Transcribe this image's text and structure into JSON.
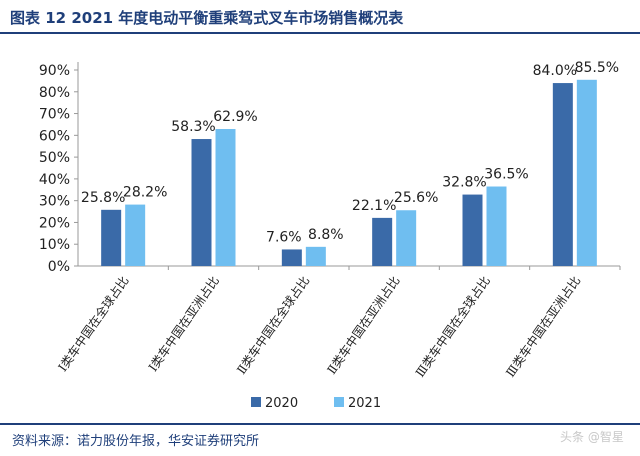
{
  "title": "图表 12 2021 年度电动平衡重乘驾式叉车市场销售概况表",
  "source": "资料来源：诺力股份年报，华安证券研究所",
  "watermark": "头条 @智星",
  "colors": {
    "series_2020": "#3a6aa8",
    "series_2021": "#6fbef0",
    "brand": "#1f3f7a"
  },
  "chart_data": {
    "type": "bar",
    "categories": [
      "Ⅰ类车中国在全球占比",
      "Ⅰ类车中国在亚洲占比",
      "Ⅱ类车中国在全球占比",
      "Ⅱ类车中国在亚洲占比",
      "Ⅲ类车中国在全球占比",
      "Ⅲ类车中国在亚洲占比"
    ],
    "series": [
      {
        "name": "2020",
        "values": [
          25.8,
          58.3,
          7.6,
          22.1,
          32.8,
          84.0
        ],
        "labels": [
          "25.8%",
          "58.3%",
          "7.6%",
          "22.1%",
          "32.8%",
          "84.0%"
        ]
      },
      {
        "name": "2021",
        "values": [
          28.2,
          62.9,
          8.8,
          25.6,
          36.5,
          85.5
        ],
        "labels": [
          "28.2%",
          "62.9%",
          "8.8%",
          "25.6%",
          "36.5%",
          "85.5%"
        ]
      }
    ],
    "yticks": [
      "0%",
      "10%",
      "20%",
      "30%",
      "40%",
      "50%",
      "60%",
      "70%",
      "80%",
      "90%"
    ],
    "ylim": [
      0,
      90
    ],
    "legend_position": "bottom",
    "grid": false
  }
}
